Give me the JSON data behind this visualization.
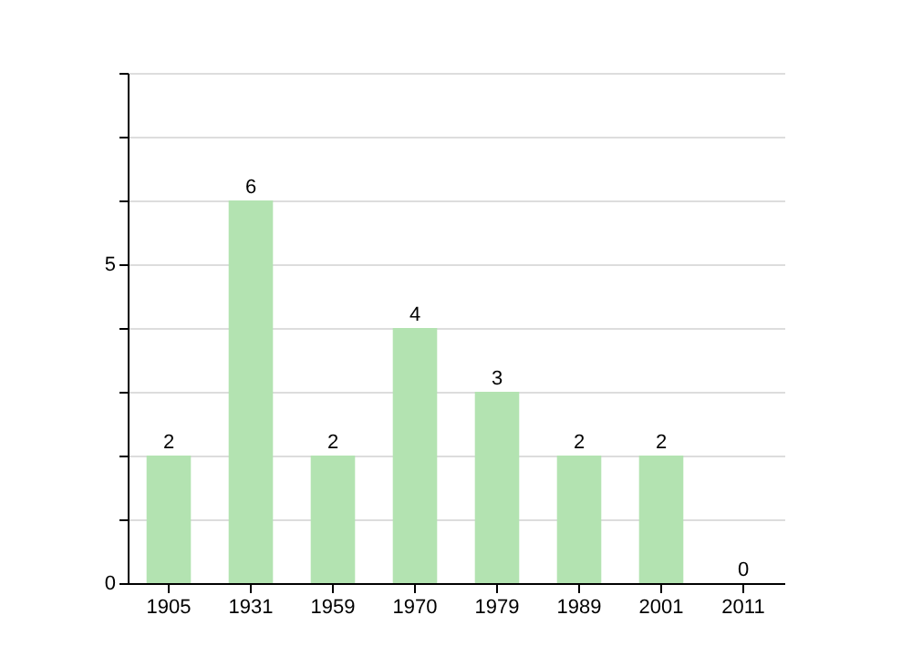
{
  "chart_data": {
    "type": "bar",
    "categories": [
      "1905",
      "1931",
      "1959",
      "1970",
      "1979",
      "1989",
      "2001",
      "2011"
    ],
    "values": [
      2,
      6,
      2,
      4,
      3,
      2,
      2,
      0
    ],
    "color": "#b3e3b1",
    "ylim": [
      0,
      8
    ],
    "yticks": [
      0,
      {
        "value": 1,
        "label": null
      },
      {
        "value": 2,
        "label": null
      },
      {
        "value": 3,
        "label": null
      },
      {
        "value": 4,
        "label": null
      },
      5,
      {
        "value": 6,
        "label": null
      },
      {
        "value": 7,
        "label": null
      },
      {
        "value": 8,
        "label": null
      }
    ],
    "grid": "y",
    "data_labels": true
  }
}
